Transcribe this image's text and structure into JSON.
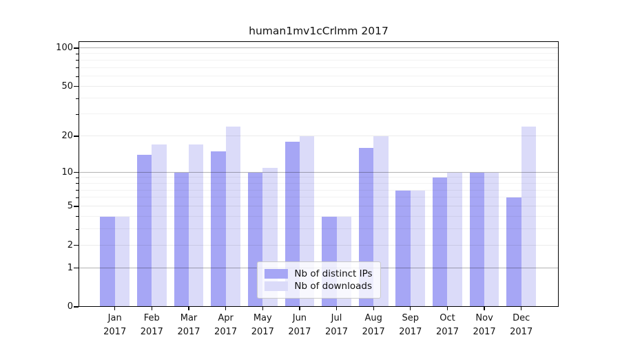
{
  "title": "human1mv1cCrlmm 2017",
  "chart_data": {
    "type": "bar",
    "title": "human1mv1cCrlmm 2017",
    "categories": [
      "Jan",
      "Feb",
      "Mar",
      "Apr",
      "May",
      "Jun",
      "Jul",
      "Aug",
      "Sep",
      "Oct",
      "Nov",
      "Dec"
    ],
    "year_label": "2017",
    "series": [
      {
        "name": "Nb of distinct IPs",
        "color": "#a6a6f5",
        "values": [
          4,
          14,
          10,
          15,
          10,
          18,
          4,
          16,
          7,
          9,
          10,
          6
        ]
      },
      {
        "name": "Nb of downloads",
        "color": "#dbdbf9",
        "values": [
          4,
          17,
          17,
          24,
          11,
          20,
          4,
          20,
          7,
          10,
          10,
          24
        ]
      }
    ],
    "xlabel": "",
    "ylabel": "",
    "y_axis": {
      "scale": "log1p",
      "labeled_ticks": [
        0,
        1,
        2,
        5,
        10,
        20,
        50,
        100
      ],
      "minor_ticks": [
        3,
        4,
        6,
        7,
        8,
        9,
        30,
        40,
        60,
        70,
        80,
        90
      ],
      "decade_ticks": [
        1,
        10,
        100
      ],
      "ylim": [
        0,
        112
      ]
    },
    "legend": {
      "position": "lower center",
      "entries": [
        "Nb of distinct IPs",
        "Nb of downloads"
      ]
    },
    "grid": true
  },
  "colors": {
    "bar_ips": "#a6a6f5",
    "bar_downloads": "#dbdbf9",
    "grid_decade": "rgba(0,0,0,0.30)",
    "grid_light": "rgba(0,0,0,0.08)",
    "grid_faint": "rgba(0,0,0,0.05)",
    "frame": "#000000"
  }
}
